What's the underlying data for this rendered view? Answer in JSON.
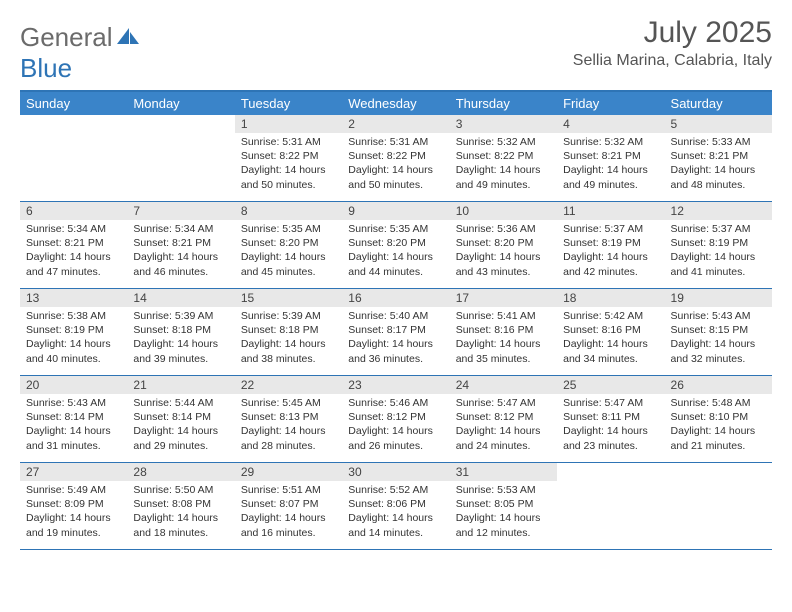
{
  "brand": {
    "part1": "General",
    "part2": "Blue"
  },
  "title": "July 2025",
  "location": "Sellia Marina, Calabria, Italy",
  "colors": {
    "header_bg": "#3a84c9",
    "header_border": "#2e74b5",
    "daynum_bg": "#e8e8e8",
    "text": "#333333",
    "title_text": "#555555"
  },
  "fonts": {
    "title_size_pt": 30,
    "location_size_pt": 16,
    "head_size_pt": 13,
    "body_size_pt": 10.5
  },
  "weekdays": [
    "Sunday",
    "Monday",
    "Tuesday",
    "Wednesday",
    "Thursday",
    "Friday",
    "Saturday"
  ],
  "weeks": [
    [
      {
        "n": "",
        "sr": "",
        "ss": "",
        "dl": ""
      },
      {
        "n": "",
        "sr": "",
        "ss": "",
        "dl": ""
      },
      {
        "n": "1",
        "sr": "Sunrise: 5:31 AM",
        "ss": "Sunset: 8:22 PM",
        "dl": "Daylight: 14 hours and 50 minutes."
      },
      {
        "n": "2",
        "sr": "Sunrise: 5:31 AM",
        "ss": "Sunset: 8:22 PM",
        "dl": "Daylight: 14 hours and 50 minutes."
      },
      {
        "n": "3",
        "sr": "Sunrise: 5:32 AM",
        "ss": "Sunset: 8:22 PM",
        "dl": "Daylight: 14 hours and 49 minutes."
      },
      {
        "n": "4",
        "sr": "Sunrise: 5:32 AM",
        "ss": "Sunset: 8:21 PM",
        "dl": "Daylight: 14 hours and 49 minutes."
      },
      {
        "n": "5",
        "sr": "Sunrise: 5:33 AM",
        "ss": "Sunset: 8:21 PM",
        "dl": "Daylight: 14 hours and 48 minutes."
      }
    ],
    [
      {
        "n": "6",
        "sr": "Sunrise: 5:34 AM",
        "ss": "Sunset: 8:21 PM",
        "dl": "Daylight: 14 hours and 47 minutes."
      },
      {
        "n": "7",
        "sr": "Sunrise: 5:34 AM",
        "ss": "Sunset: 8:21 PM",
        "dl": "Daylight: 14 hours and 46 minutes."
      },
      {
        "n": "8",
        "sr": "Sunrise: 5:35 AM",
        "ss": "Sunset: 8:20 PM",
        "dl": "Daylight: 14 hours and 45 minutes."
      },
      {
        "n": "9",
        "sr": "Sunrise: 5:35 AM",
        "ss": "Sunset: 8:20 PM",
        "dl": "Daylight: 14 hours and 44 minutes."
      },
      {
        "n": "10",
        "sr": "Sunrise: 5:36 AM",
        "ss": "Sunset: 8:20 PM",
        "dl": "Daylight: 14 hours and 43 minutes."
      },
      {
        "n": "11",
        "sr": "Sunrise: 5:37 AM",
        "ss": "Sunset: 8:19 PM",
        "dl": "Daylight: 14 hours and 42 minutes."
      },
      {
        "n": "12",
        "sr": "Sunrise: 5:37 AM",
        "ss": "Sunset: 8:19 PM",
        "dl": "Daylight: 14 hours and 41 minutes."
      }
    ],
    [
      {
        "n": "13",
        "sr": "Sunrise: 5:38 AM",
        "ss": "Sunset: 8:19 PM",
        "dl": "Daylight: 14 hours and 40 minutes."
      },
      {
        "n": "14",
        "sr": "Sunrise: 5:39 AM",
        "ss": "Sunset: 8:18 PM",
        "dl": "Daylight: 14 hours and 39 minutes."
      },
      {
        "n": "15",
        "sr": "Sunrise: 5:39 AM",
        "ss": "Sunset: 8:18 PM",
        "dl": "Daylight: 14 hours and 38 minutes."
      },
      {
        "n": "16",
        "sr": "Sunrise: 5:40 AM",
        "ss": "Sunset: 8:17 PM",
        "dl": "Daylight: 14 hours and 36 minutes."
      },
      {
        "n": "17",
        "sr": "Sunrise: 5:41 AM",
        "ss": "Sunset: 8:16 PM",
        "dl": "Daylight: 14 hours and 35 minutes."
      },
      {
        "n": "18",
        "sr": "Sunrise: 5:42 AM",
        "ss": "Sunset: 8:16 PM",
        "dl": "Daylight: 14 hours and 34 minutes."
      },
      {
        "n": "19",
        "sr": "Sunrise: 5:43 AM",
        "ss": "Sunset: 8:15 PM",
        "dl": "Daylight: 14 hours and 32 minutes."
      }
    ],
    [
      {
        "n": "20",
        "sr": "Sunrise: 5:43 AM",
        "ss": "Sunset: 8:14 PM",
        "dl": "Daylight: 14 hours and 31 minutes."
      },
      {
        "n": "21",
        "sr": "Sunrise: 5:44 AM",
        "ss": "Sunset: 8:14 PM",
        "dl": "Daylight: 14 hours and 29 minutes."
      },
      {
        "n": "22",
        "sr": "Sunrise: 5:45 AM",
        "ss": "Sunset: 8:13 PM",
        "dl": "Daylight: 14 hours and 28 minutes."
      },
      {
        "n": "23",
        "sr": "Sunrise: 5:46 AM",
        "ss": "Sunset: 8:12 PM",
        "dl": "Daylight: 14 hours and 26 minutes."
      },
      {
        "n": "24",
        "sr": "Sunrise: 5:47 AM",
        "ss": "Sunset: 8:12 PM",
        "dl": "Daylight: 14 hours and 24 minutes."
      },
      {
        "n": "25",
        "sr": "Sunrise: 5:47 AM",
        "ss": "Sunset: 8:11 PM",
        "dl": "Daylight: 14 hours and 23 minutes."
      },
      {
        "n": "26",
        "sr": "Sunrise: 5:48 AM",
        "ss": "Sunset: 8:10 PM",
        "dl": "Daylight: 14 hours and 21 minutes."
      }
    ],
    [
      {
        "n": "27",
        "sr": "Sunrise: 5:49 AM",
        "ss": "Sunset: 8:09 PM",
        "dl": "Daylight: 14 hours and 19 minutes."
      },
      {
        "n": "28",
        "sr": "Sunrise: 5:50 AM",
        "ss": "Sunset: 8:08 PM",
        "dl": "Daylight: 14 hours and 18 minutes."
      },
      {
        "n": "29",
        "sr": "Sunrise: 5:51 AM",
        "ss": "Sunset: 8:07 PM",
        "dl": "Daylight: 14 hours and 16 minutes."
      },
      {
        "n": "30",
        "sr": "Sunrise: 5:52 AM",
        "ss": "Sunset: 8:06 PM",
        "dl": "Daylight: 14 hours and 14 minutes."
      },
      {
        "n": "31",
        "sr": "Sunrise: 5:53 AM",
        "ss": "Sunset: 8:05 PM",
        "dl": "Daylight: 14 hours and 12 minutes."
      },
      {
        "n": "",
        "sr": "",
        "ss": "",
        "dl": ""
      },
      {
        "n": "",
        "sr": "",
        "ss": "",
        "dl": ""
      }
    ]
  ]
}
